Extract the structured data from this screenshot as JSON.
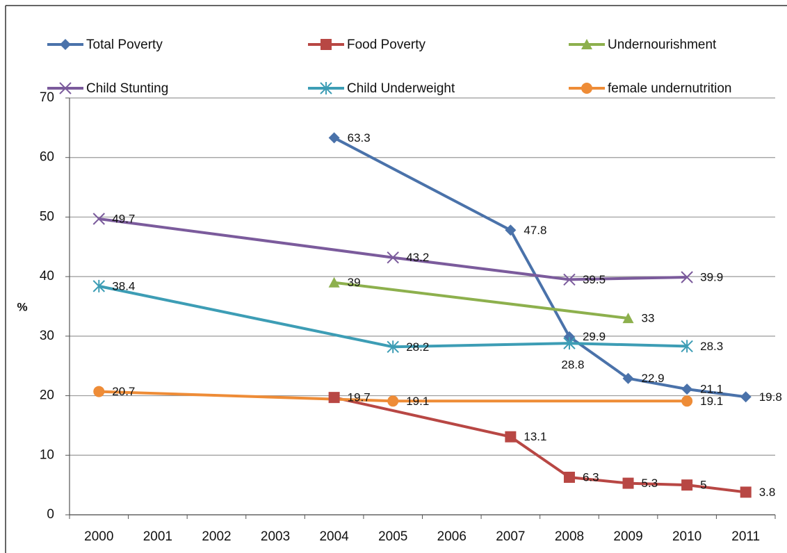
{
  "chart_data": {
    "type": "line",
    "categories": [
      "2000",
      "2001",
      "2002",
      "2003",
      "2004",
      "2005",
      "2006",
      "2007",
      "2008",
      "2009",
      "2010",
      "2011"
    ],
    "y_label": "%",
    "ylim": [
      0,
      70
    ],
    "yticks": [
      0,
      10,
      20,
      30,
      40,
      50,
      60,
      70
    ],
    "grid": true,
    "connect_gaps": true,
    "series": [
      {
        "name": "Total Poverty",
        "color": "#4a72aa",
        "marker": "diamond",
        "values": [
          null,
          null,
          null,
          null,
          63.3,
          null,
          null,
          47.8,
          29.9,
          22.9,
          21.1,
          19.8
        ]
      },
      {
        "name": "Food Poverty",
        "color": "#b84744",
        "marker": "square",
        "values": [
          null,
          null,
          null,
          null,
          19.7,
          null,
          null,
          13.1,
          6.3,
          5.3,
          5,
          3.8
        ]
      },
      {
        "name": "Undernourishment",
        "color": "#8db04d",
        "marker": "triangle",
        "values": [
          null,
          null,
          null,
          null,
          39,
          null,
          null,
          null,
          null,
          33,
          null,
          null
        ]
      },
      {
        "name": "Child Stunting",
        "color": "#7b5b9c",
        "marker": "x",
        "values": [
          49.7,
          null,
          null,
          null,
          null,
          43.2,
          null,
          null,
          39.5,
          null,
          39.9,
          null
        ]
      },
      {
        "name": "Child Underweight",
        "color": "#3d9db5",
        "marker": "star",
        "values": [
          38.4,
          null,
          null,
          null,
          null,
          28.2,
          null,
          null,
          28.8,
          null,
          28.3,
          null
        ]
      },
      {
        "name": "female undernutrition",
        "color": "#ee8c37",
        "marker": "circle",
        "values": [
          20.7,
          null,
          null,
          null,
          null,
          19.1,
          null,
          null,
          null,
          null,
          19.1,
          null
        ]
      }
    ]
  }
}
